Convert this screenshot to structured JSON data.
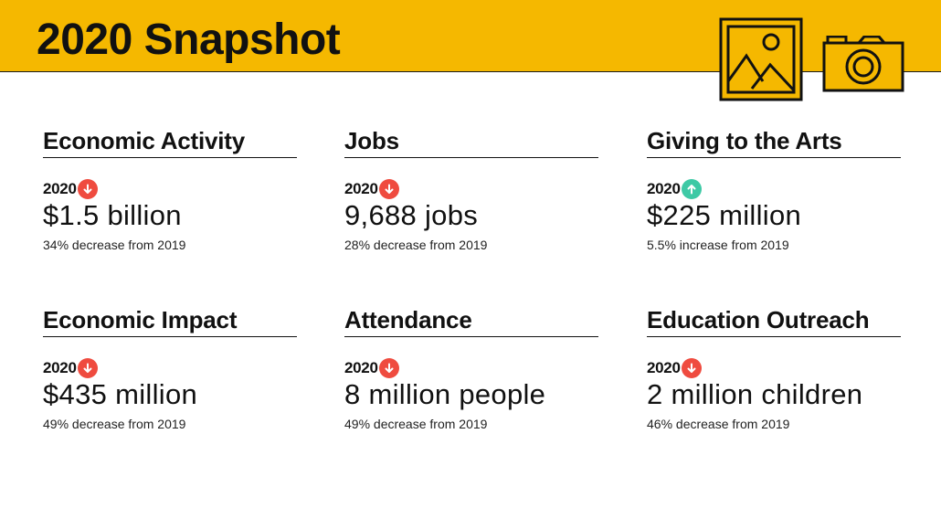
{
  "title": "2020 Snapshot",
  "colors": {
    "banner": "#f5b800",
    "decrease": "#ef4b3f",
    "increase": "#3dc9a5",
    "text": "#111111"
  },
  "icons": [
    "picture-icon",
    "camera-icon",
    "arrow-down-icon",
    "arrow-up-icon"
  ],
  "stats": [
    {
      "heading": "Economic Activity",
      "year": "2020",
      "trend": "down",
      "value": "$1.5 billion",
      "change": "34% decrease from 2019"
    },
    {
      "heading": "Jobs",
      "year": "2020",
      "trend": "down",
      "value": "9,688 jobs",
      "change": "28% decrease from 2019"
    },
    {
      "heading": "Giving to the Arts",
      "year": "2020",
      "trend": "up",
      "value": "$225 million",
      "change": "5.5% increase from 2019"
    },
    {
      "heading": "Economic Impact",
      "year": "2020",
      "trend": "down",
      "value": "$435 million",
      "change": "49% decrease from 2019"
    },
    {
      "heading": "Attendance",
      "year": "2020",
      "trend": "down",
      "value": "8 million people",
      "change": "49% decrease from 2019"
    },
    {
      "heading": "Education Outreach",
      "year": "2020",
      "trend": "down",
      "value": "2 million children",
      "change": "46% decrease from 2019"
    }
  ]
}
